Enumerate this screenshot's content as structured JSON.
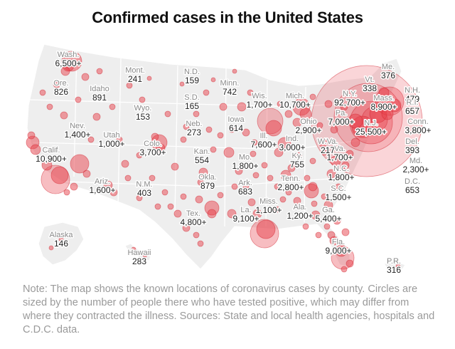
{
  "title": "Confirmed cases in the United States",
  "note": "Note: The map shows the known locations of coronavirus cases by county. Circles are sized by the number of people there who have tested positive, which may differ from where they contracted the illness. Sources: State and local health agencies, hospitals and C.D.C. data.",
  "colors": {
    "land": "#eeeeee",
    "border": "#ffffff",
    "bubble_fill": "#e8424c",
    "bubble_stroke": "#d21f2b",
    "name_text": "#8a8a8a",
    "value_text": "#222222"
  },
  "labels": [
    {
      "name": "Wash.",
      "value": "6,500+"
    },
    {
      "name": "Ore.",
      "value": "826"
    },
    {
      "name": "Idaho",
      "value": "891"
    },
    {
      "name": "Mont.",
      "value": "241"
    },
    {
      "name": "N.D.",
      "value": "159"
    },
    {
      "name": "Minn.",
      "value": "742"
    },
    {
      "name": "Wis.",
      "value": "1,700+"
    },
    {
      "name": "Mich.",
      "value": "10,700+"
    },
    {
      "name": "Me.",
      "value": "376"
    },
    {
      "name": "Vt.",
      "value": "338"
    },
    {
      "name": "N.H.",
      "value": "479"
    },
    {
      "name": "N.Y.",
      "value": "92,700+"
    },
    {
      "name": "Mass.",
      "value": "8,900+"
    },
    {
      "name": "R.I.",
      "value": "657"
    },
    {
      "name": "Conn.",
      "value": "3,800+"
    },
    {
      "name": "Pa.",
      "value": "7,000+"
    },
    {
      "name": "N.J.",
      "value": "25,500+"
    },
    {
      "name": "Del.",
      "value": "393"
    },
    {
      "name": "Md.",
      "value": "2,300+"
    },
    {
      "name": "D.C.",
      "value": "653"
    },
    {
      "name": "Ohio",
      "value": "2,900+"
    },
    {
      "name": "Ind.",
      "value": "3,000+"
    },
    {
      "name": "W.Va.",
      "value": "217"
    },
    {
      "name": "Va.",
      "value": "1,700+"
    },
    {
      "name": "Ill.",
      "value": "7,600+"
    },
    {
      "name": "Iowa",
      "value": "614"
    },
    {
      "name": "S.D.",
      "value": "165"
    },
    {
      "name": "Wyo.",
      "value": "153"
    },
    {
      "name": "Nev.",
      "value": "1,400+"
    },
    {
      "name": "Utah",
      "value": "1,000+"
    },
    {
      "name": "Colo.",
      "value": "3,700+"
    },
    {
      "name": "Neb.",
      "value": "273"
    },
    {
      "name": "Calif.",
      "value": "10,900+"
    },
    {
      "name": "Kan.",
      "value": "554"
    },
    {
      "name": "Mo.",
      "value": "1,800+"
    },
    {
      "name": "Ky.",
      "value": "755"
    },
    {
      "name": "N.C.",
      "value": "1,800+"
    },
    {
      "name": "Tenn.",
      "value": "2,800+"
    },
    {
      "name": "S.C.",
      "value": "1,500+"
    },
    {
      "name": "Ariz.",
      "value": "1,600+"
    },
    {
      "name": "N.M.",
      "value": "403"
    },
    {
      "name": "Okla.",
      "value": "879"
    },
    {
      "name": "Ark.",
      "value": "683"
    },
    {
      "name": "Miss.",
      "value": "1,100+"
    },
    {
      "name": "Ala.",
      "value": "1,200+"
    },
    {
      "name": "Ga.",
      "value": "5,400+"
    },
    {
      "name": "La.",
      "value": "9,100+"
    },
    {
      "name": "Tex.",
      "value": "4,800+"
    },
    {
      "name": "Fla.",
      "value": "9,000+"
    },
    {
      "name": "Alaska",
      "value": "146"
    },
    {
      "name": "Hawaii",
      "value": "283"
    },
    {
      "name": "P.R.",
      "value": "316"
    }
  ]
}
